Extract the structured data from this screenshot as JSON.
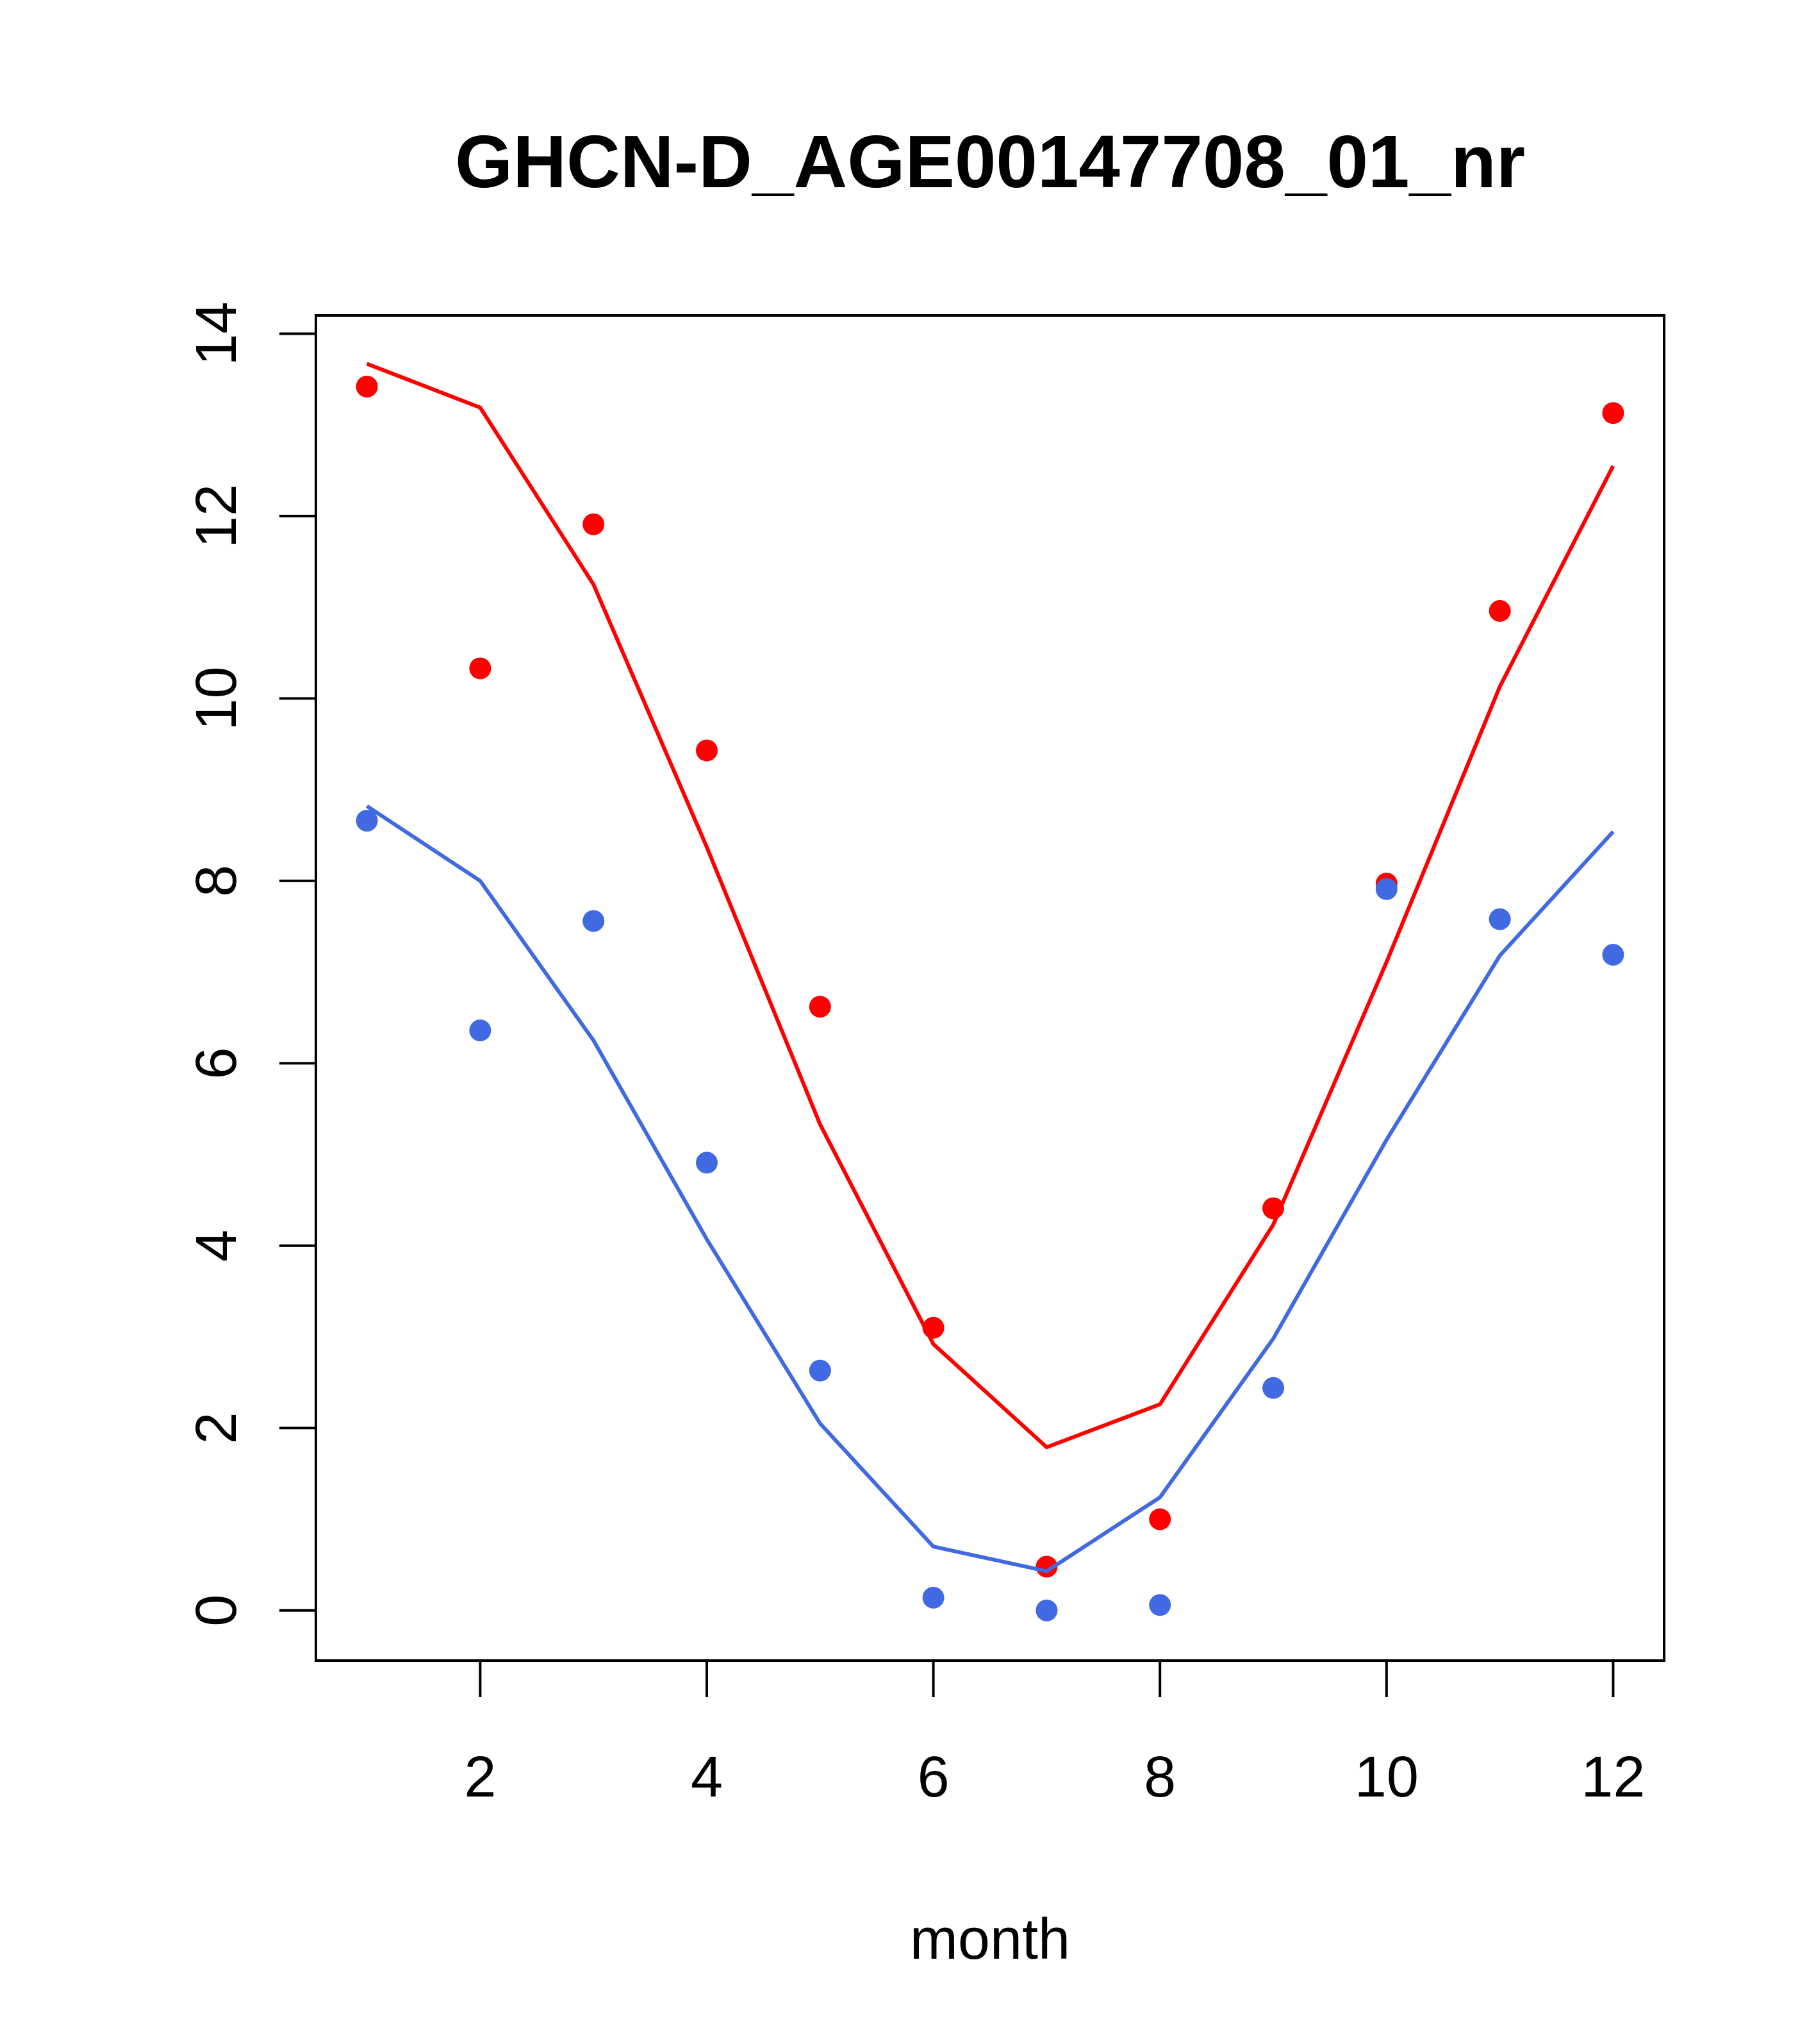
{
  "chart_data": {
    "type": "scatter",
    "title": "GHCN-D_AGE00147708_01_nr",
    "xlabel": "month",
    "ylabel": "",
    "xlim": [
      0.55,
      12.45
    ],
    "ylim": [
      -0.55,
      14.2
    ],
    "x_ticks": [
      2,
      4,
      6,
      8,
      10,
      12
    ],
    "y_ticks": [
      0,
      2,
      4,
      6,
      8,
      10,
      12,
      14
    ],
    "x_tick_labels": [
      "2",
      "4",
      "6",
      "8",
      "10",
      "12"
    ],
    "y_tick_labels": [
      "0",
      "2",
      "4",
      "6",
      "8",
      "10",
      "12",
      "14"
    ],
    "grid": false,
    "x": [
      1,
      2,
      3,
      4,
      5,
      6,
      7,
      8,
      9,
      10,
      11,
      12
    ],
    "series": [
      {
        "color": "#ff0000",
        "points": [
          13.42,
          10.33,
          11.91,
          9.43,
          6.62,
          3.1,
          0.48,
          1.0,
          4.41,
          7.97,
          10.96,
          13.13
        ],
        "line": [
          13.67,
          13.19,
          11.25,
          8.37,
          5.33,
          2.92,
          1.79,
          2.26,
          4.23,
          7.11,
          10.13,
          12.55
        ]
      },
      {
        "color": "#4169e1",
        "points": [
          8.66,
          6.36,
          7.56,
          4.91,
          2.63,
          0.14,
          0.0,
          0.06,
          2.44,
          7.91,
          7.58,
          7.19
        ],
        "line": [
          8.82,
          8.0,
          6.25,
          4.07,
          2.05,
          0.7,
          0.43,
          1.24,
          2.98,
          5.16,
          7.18,
          8.54
        ]
      }
    ]
  }
}
